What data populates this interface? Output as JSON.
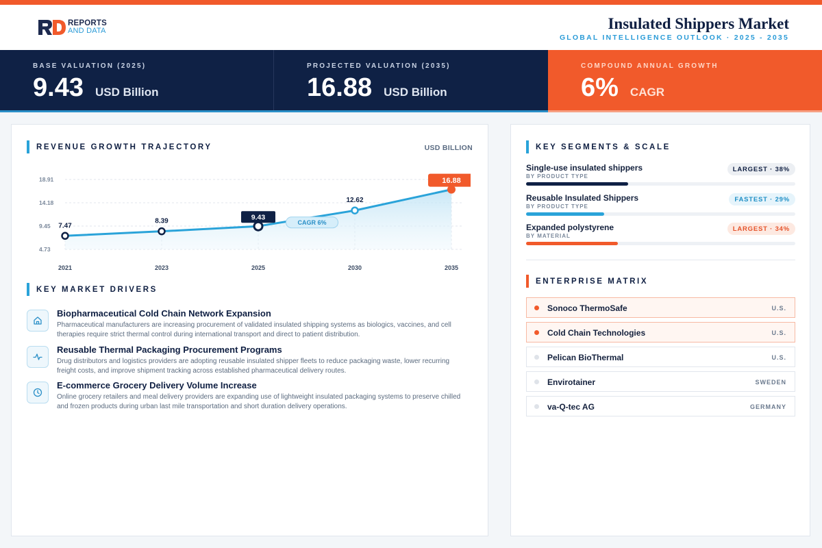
{
  "brand": {
    "line1": "REPORTS",
    "line2": "AND DATA"
  },
  "header": {
    "title": "Insulated Shippers Market",
    "subtitle": "GLOBAL INTELLIGENCE OUTLOOK  ·  2025 - 2035"
  },
  "kpis": [
    {
      "label": "BASE VALUATION (2025)",
      "value": "9.43",
      "unit": "USD Billion"
    },
    {
      "label": "PROJECTED VALUATION (2035)",
      "value": "16.88",
      "unit": "USD Billion"
    },
    {
      "label": "COMPOUND ANNUAL GROWTH",
      "value": "6%",
      "unit": "CAGR"
    }
  ],
  "trajectory": {
    "title": "REVENUE GROWTH TRAJECTORY",
    "unit_label": "USD BILLION"
  },
  "chart_data": {
    "type": "area",
    "categories": [
      "2021",
      "2023",
      "2025",
      "2030",
      "2035"
    ],
    "values": [
      7.47,
      8.39,
      9.43,
      12.62,
      16.88
    ],
    "value_labels": [
      "7.47",
      "8.39",
      "9.43",
      "12.62",
      "16.88"
    ],
    "y_ticks": [
      "18.91",
      "14.18",
      "9.45",
      "4.73"
    ],
    "ylim": [
      4.73,
      18.91
    ],
    "annotation": "CAGR 6%",
    "highlight": {
      "base_index": 2,
      "projected_index": 4
    },
    "colors": {
      "line": "#2aa3d9",
      "base": "#0f2145",
      "projected": "#f15a2b"
    },
    "grid": true
  },
  "drivers": {
    "title": "KEY MARKET DRIVERS",
    "items": [
      {
        "icon": "home-icon",
        "title": "Biopharmaceutical Cold Chain Network Expansion",
        "desc": "Pharmaceutical manufacturers are increasing procurement of validated insulated shipping systems as biologics, vaccines, and cell therapies require strict thermal control during international transport and direct to patient distribution."
      },
      {
        "icon": "activity-icon",
        "title": "Reusable Thermal Packaging Procurement Programs",
        "desc": "Drug distributors and logistics providers are adopting reusable insulated shipper fleets to reduce packaging waste, lower recurring freight costs, and improve shipment tracking across established pharmaceutical delivery routes."
      },
      {
        "icon": "clock-icon",
        "title": "E-commerce Grocery Delivery Volume Increase",
        "desc": "Online grocery retailers and meal delivery providers are expanding use of lightweight insulated packaging systems to preserve chilled and frozen products during urban last mile transportation and short duration delivery operations."
      }
    ]
  },
  "segments": {
    "title": "KEY SEGMENTS & SCALE",
    "items": [
      {
        "name": "Single-use insulated shippers",
        "category": "BY PRODUCT TYPE",
        "badge": "LARGEST · 38%",
        "share": 0.38,
        "color": "#0f2145",
        "badge_bg": "#eceff3",
        "badge_fg": "#0f1f42"
      },
      {
        "name": "Reusable Insulated Shippers",
        "category": "BY PRODUCT TYPE",
        "badge": "FASTEST · 29%",
        "share": 0.29,
        "color": "#2aa3d9",
        "badge_bg": "#e6f4fb",
        "badge_fg": "#1f8fc6"
      },
      {
        "name": "Expanded polystyrene",
        "category": "BY MATERIAL",
        "badge": "LARGEST · 34%",
        "share": 0.34,
        "color": "#f15a2b",
        "badge_bg": "#fde9e1",
        "badge_fg": "#e5532a"
      }
    ]
  },
  "enterprise": {
    "title": "ENTERPRISE MATRIX",
    "items": [
      {
        "name": "Sonoco ThermoSafe",
        "country": "U.S.",
        "highlighted": true
      },
      {
        "name": "Cold Chain Technologies",
        "country": "U.S.",
        "highlighted": true
      },
      {
        "name": "Pelican BioThermal",
        "country": "U.S.",
        "highlighted": false
      },
      {
        "name": "Envirotainer",
        "country": "SWEDEN",
        "highlighted": false
      },
      {
        "name": "va-Q-tec AG",
        "country": "GERMANY",
        "highlighted": false
      }
    ]
  }
}
